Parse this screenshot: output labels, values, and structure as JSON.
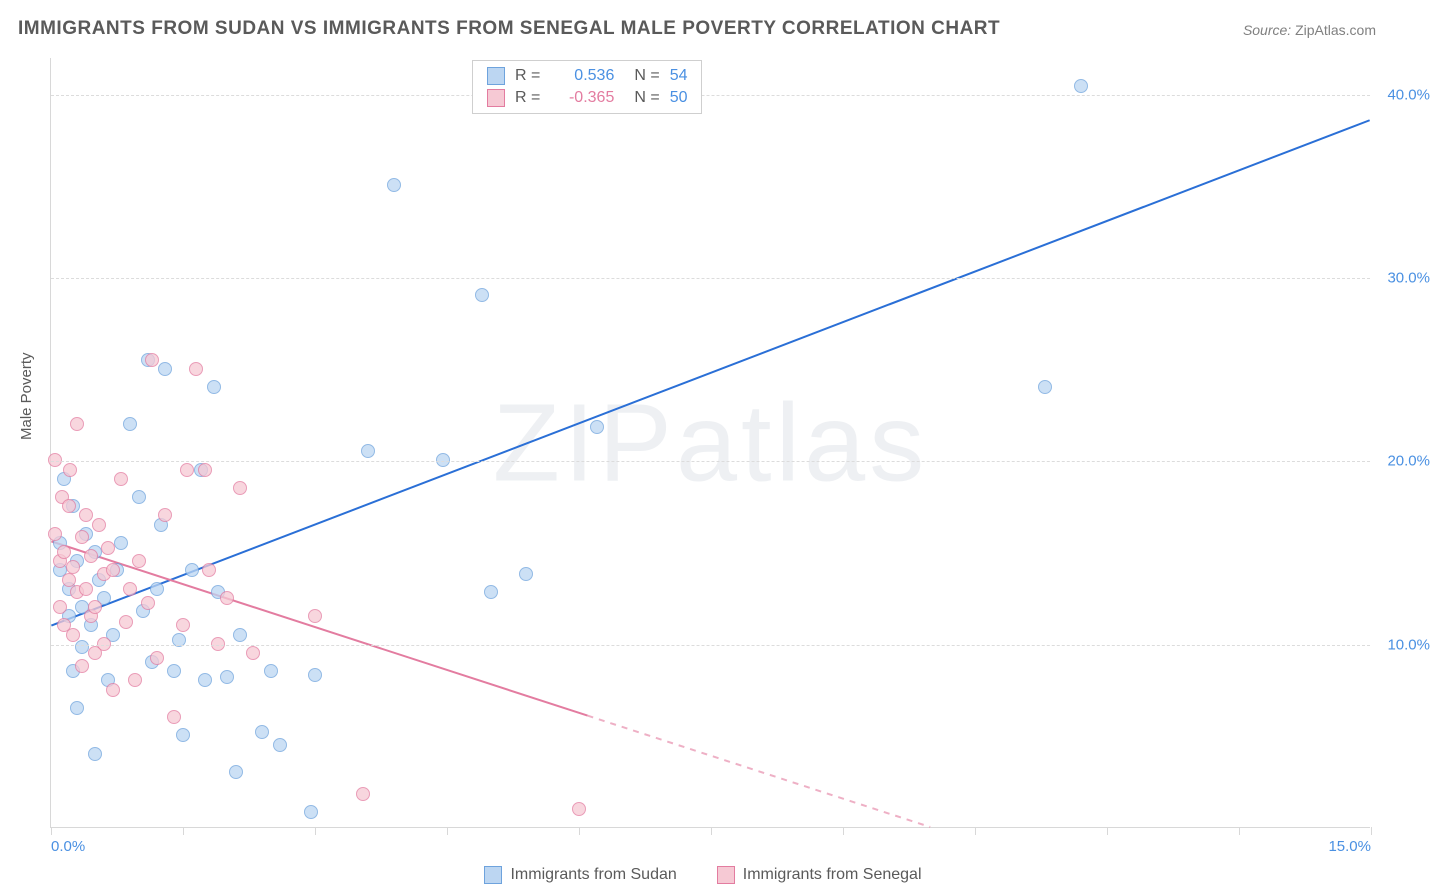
{
  "title": "IMMIGRANTS FROM SUDAN VS IMMIGRANTS FROM SENEGAL MALE POVERTY CORRELATION CHART",
  "source": {
    "label": "Source:",
    "name": "ZipAtlas.com"
  },
  "watermark": "ZIPatlas",
  "chart": {
    "type": "scatter",
    "ylabel": "Male Poverty",
    "xlim": [
      0,
      15
    ],
    "ylim": [
      0,
      42
    ],
    "xticks": [
      0.0,
      15.0
    ],
    "xtick_labels": [
      "0.0%",
      "15.0%"
    ],
    "xminor_step": 1.5,
    "yticks": [
      10.0,
      20.0,
      30.0,
      40.0
    ],
    "ytick_labels": [
      "10.0%",
      "20.0%",
      "30.0%",
      "40.0%"
    ],
    "background_color": "#ffffff",
    "grid_color": "#dcdcdc",
    "axis_color": "#d8d8d8",
    "tick_label_color": "#4a90e2",
    "ylabel_color": "#5a5a5a",
    "point_radius": 7,
    "point_opacity": 0.75,
    "series": [
      {
        "key": "sudan",
        "label": "Immigrants from Sudan",
        "fill": "#bcd6f2",
        "stroke": "#6ea3dd",
        "r_value": "0.536",
        "n_value": "54",
        "r_color": "#4a90e2",
        "n_color": "#4a90e2",
        "trend": {
          "x1": 0,
          "y1": 11.0,
          "x2": 15.0,
          "y2": 38.6,
          "color": "#2a6fd6",
          "width": 2,
          "dash_after_x": null
        },
        "points": [
          [
            0.1,
            14.0
          ],
          [
            0.1,
            15.5
          ],
          [
            0.15,
            19.0
          ],
          [
            0.2,
            11.5
          ],
          [
            0.2,
            13.0
          ],
          [
            0.25,
            8.5
          ],
          [
            0.25,
            17.5
          ],
          [
            0.3,
            14.5
          ],
          [
            0.3,
            6.5
          ],
          [
            0.35,
            12.0
          ],
          [
            0.35,
            9.8
          ],
          [
            0.4,
            16.0
          ],
          [
            0.45,
            11.0
          ],
          [
            0.5,
            15.0
          ],
          [
            0.5,
            4.0
          ],
          [
            0.55,
            13.5
          ],
          [
            0.6,
            12.5
          ],
          [
            0.65,
            8.0
          ],
          [
            0.7,
            10.5
          ],
          [
            0.75,
            14.0
          ],
          [
            0.8,
            15.5
          ],
          [
            0.9,
            22.0
          ],
          [
            1.0,
            18.0
          ],
          [
            1.05,
            11.8
          ],
          [
            1.1,
            25.5
          ],
          [
            1.15,
            9.0
          ],
          [
            1.2,
            13.0
          ],
          [
            1.25,
            16.5
          ],
          [
            1.3,
            25.0
          ],
          [
            1.4,
            8.5
          ],
          [
            1.45,
            10.2
          ],
          [
            1.5,
            5.0
          ],
          [
            1.6,
            14.0
          ],
          [
            1.7,
            19.5
          ],
          [
            1.75,
            8.0
          ],
          [
            1.85,
            24.0
          ],
          [
            1.9,
            12.8
          ],
          [
            2.0,
            8.2
          ],
          [
            2.1,
            3.0
          ],
          [
            2.15,
            10.5
          ],
          [
            2.4,
            5.2
          ],
          [
            2.5,
            8.5
          ],
          [
            2.6,
            4.5
          ],
          [
            2.95,
            0.8
          ],
          [
            3.0,
            8.3
          ],
          [
            3.6,
            20.5
          ],
          [
            3.9,
            35.0
          ],
          [
            4.45,
            20.0
          ],
          [
            4.9,
            29.0
          ],
          [
            5.0,
            12.8
          ],
          [
            5.4,
            13.8
          ],
          [
            6.2,
            21.8
          ],
          [
            11.3,
            24.0
          ],
          [
            11.7,
            40.4
          ]
        ]
      },
      {
        "key": "senegal",
        "label": "Immigrants from Senegal",
        "fill": "#f6c9d4",
        "stroke": "#e37ca0",
        "r_value": "-0.365",
        "n_value": "50",
        "r_color": "#e37ca0",
        "n_color": "#4a90e2",
        "trend": {
          "x1": 0,
          "y1": 15.6,
          "x2": 10.0,
          "y2": 0.0,
          "color": "#e37ca0",
          "width": 2,
          "dash_after_x": 6.1
        },
        "points": [
          [
            0.05,
            16.0
          ],
          [
            0.05,
            20.0
          ],
          [
            0.1,
            14.5
          ],
          [
            0.1,
            12.0
          ],
          [
            0.12,
            18.0
          ],
          [
            0.15,
            11.0
          ],
          [
            0.15,
            15.0
          ],
          [
            0.2,
            17.5
          ],
          [
            0.2,
            13.5
          ],
          [
            0.22,
            19.5
          ],
          [
            0.25,
            14.2
          ],
          [
            0.25,
            10.5
          ],
          [
            0.3,
            22.0
          ],
          [
            0.3,
            12.8
          ],
          [
            0.35,
            15.8
          ],
          [
            0.35,
            8.8
          ],
          [
            0.4,
            13.0
          ],
          [
            0.4,
            17.0
          ],
          [
            0.45,
            11.5
          ],
          [
            0.45,
            14.8
          ],
          [
            0.5,
            9.5
          ],
          [
            0.5,
            12.0
          ],
          [
            0.55,
            16.5
          ],
          [
            0.6,
            10.0
          ],
          [
            0.6,
            13.8
          ],
          [
            0.65,
            15.2
          ],
          [
            0.7,
            7.5
          ],
          [
            0.7,
            14.0
          ],
          [
            0.8,
            19.0
          ],
          [
            0.85,
            11.2
          ],
          [
            0.9,
            13.0
          ],
          [
            0.95,
            8.0
          ],
          [
            1.0,
            14.5
          ],
          [
            1.1,
            12.2
          ],
          [
            1.15,
            25.5
          ],
          [
            1.2,
            9.2
          ],
          [
            1.3,
            17.0
          ],
          [
            1.4,
            6.0
          ],
          [
            1.5,
            11.0
          ],
          [
            1.55,
            19.5
          ],
          [
            1.65,
            25.0
          ],
          [
            1.75,
            19.5
          ],
          [
            1.8,
            14.0
          ],
          [
            1.9,
            10.0
          ],
          [
            2.0,
            12.5
          ],
          [
            2.15,
            18.5
          ],
          [
            2.3,
            9.5
          ],
          [
            3.0,
            11.5
          ],
          [
            3.55,
            1.8
          ],
          [
            6.0,
            1.0
          ]
        ]
      }
    ],
    "stats_legend": {
      "r_label": "R  =",
      "n_label": "N  ="
    },
    "bottom_legend_labels": [
      "Immigrants from Sudan",
      "Immigrants from Senegal"
    ]
  }
}
